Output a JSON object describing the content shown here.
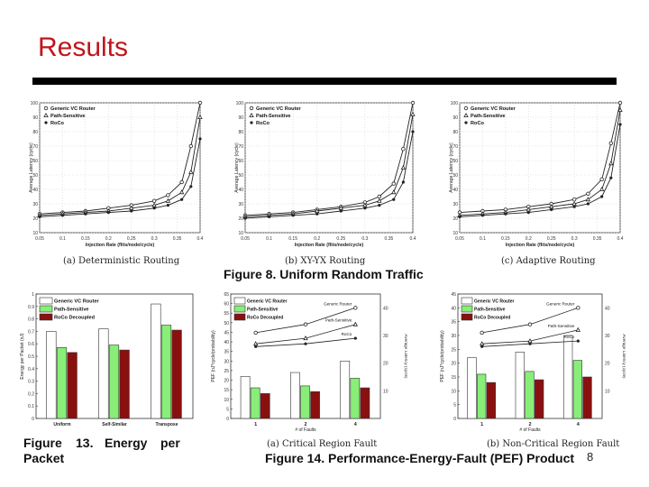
{
  "slide": {
    "title": "Results",
    "page_number": "8"
  },
  "captions": {
    "fig8": "Figure 8. Uniform Random Traffic",
    "fig13_line1": [
      "Figure",
      "13.",
      "Energy",
      "per"
    ],
    "fig13_line2": "Packet",
    "fig14": "Figure 14. Performance-Energy-Fault (PEF) Product"
  },
  "colors": {
    "title": "#c0151b",
    "bar_generic": "#ffffff",
    "bar_path": "#88ee77",
    "bar_roco": "#8a1010"
  },
  "chart_data": [
    {
      "id": "latency-a",
      "type": "line",
      "caption": "(a) Deterministic Routing",
      "xlabel": "Injection Rate (flits/node/cycle)",
      "ylabel": "Average Latency (cycle)",
      "xlim": [
        0.05,
        0.4
      ],
      "ylim": [
        10,
        100
      ],
      "xticks": [
        "0.05",
        "0.1",
        "0.15",
        "0.2",
        "0.25",
        "0.3",
        "0.35",
        "0.4"
      ],
      "yticks": [
        "100",
        "90",
        "80",
        "70",
        "60",
        "50",
        "40",
        "30",
        "20",
        "10"
      ],
      "x": [
        0.05,
        0.1,
        0.15,
        0.2,
        0.25,
        0.3,
        0.33,
        0.36,
        0.38,
        0.4
      ],
      "series": [
        {
          "name": "Generic VC Router",
          "marker": "o",
          "values": [
            23,
            24,
            25,
            27,
            29,
            32,
            36,
            45,
            70,
            100
          ]
        },
        {
          "name": "Path-Sensitive",
          "marker": "triangle",
          "values": [
            22,
            23,
            24,
            25,
            27,
            29,
            32,
            38,
            52,
            90
          ]
        },
        {
          "name": "RoCo",
          "marker": "star",
          "values": [
            21,
            22,
            23,
            24,
            25,
            27,
            29,
            33,
            42,
            75
          ]
        }
      ]
    },
    {
      "id": "latency-b",
      "type": "line",
      "caption": "(b) XY-YX Routing",
      "xlabel": "Injection Rate (flits/node/cycle)",
      "ylabel": "Average Latency (cycle)",
      "xlim": [
        0.05,
        0.4
      ],
      "ylim": [
        10,
        100
      ],
      "xticks": [
        "0.05",
        "0.1",
        "0.15",
        "0.2",
        "0.25",
        "0.3",
        "0.35",
        "0.4"
      ],
      "yticks": [
        "100",
        "90",
        "80",
        "70",
        "60",
        "50",
        "40",
        "30",
        "20",
        "10"
      ],
      "x": [
        0.05,
        0.1,
        0.15,
        0.2,
        0.25,
        0.3,
        0.33,
        0.36,
        0.38,
        0.4
      ],
      "series": [
        {
          "name": "Generic VC Router",
          "marker": "o",
          "values": [
            22,
            23,
            24,
            26,
            28,
            31,
            35,
            44,
            68,
            100
          ]
        },
        {
          "name": "Path-Sensitive",
          "marker": "triangle",
          "values": [
            21,
            22,
            23,
            25,
            27,
            29,
            32,
            38,
            55,
            92
          ]
        },
        {
          "name": "RoCo",
          "marker": "star",
          "values": [
            20,
            21,
            22,
            23,
            25,
            27,
            29,
            33,
            45,
            80
          ]
        }
      ]
    },
    {
      "id": "latency-c",
      "type": "line",
      "caption": "(c) Adaptive Routing",
      "xlabel": "Injection Rate (flits/node/cycle)",
      "ylabel": "Average Latency (cycle)",
      "xlim": [
        0.05,
        0.4
      ],
      "ylim": [
        10,
        100
      ],
      "xticks": [
        "0.05",
        "0.1",
        "0.15",
        "0.2",
        "0.25",
        "0.3",
        "0.35",
        "0.4"
      ],
      "yticks": [
        "100",
        "90",
        "80",
        "70",
        "60",
        "50",
        "40",
        "30",
        "20",
        "10"
      ],
      "x": [
        0.05,
        0.1,
        0.15,
        0.2,
        0.25,
        0.3,
        0.33,
        0.36,
        0.38,
        0.4
      ],
      "series": [
        {
          "name": "Generic VC Router",
          "marker": "o",
          "values": [
            24,
            25,
            26,
            28,
            30,
            33,
            37,
            47,
            72,
            100
          ]
        },
        {
          "name": "Path-Sensitive",
          "marker": "triangle",
          "values": [
            22,
            23,
            24,
            26,
            28,
            30,
            33,
            40,
            58,
            95
          ]
        },
        {
          "name": "RoCo",
          "marker": "star",
          "values": [
            21,
            22,
            23,
            24,
            26,
            28,
            30,
            35,
            48,
            85
          ]
        }
      ]
    },
    {
      "id": "energy",
      "type": "bar",
      "ylabel": "Energy per Packet (nJ)",
      "ylim": [
        0,
        1
      ],
      "yticks": [
        "1",
        "0.9",
        "0.8",
        "0.7",
        "0.6",
        "0.5",
        "0.4",
        "0.3",
        "0.2",
        "0.1",
        "0"
      ],
      "categories": [
        "Uniform",
        "Self-Similar",
        "Transpose"
      ],
      "series": [
        {
          "name": "Generic VC Router",
          "values": [
            0.7,
            0.72,
            0.92
          ]
        },
        {
          "name": "Path-Sensitive",
          "values": [
            0.57,
            0.59,
            0.75
          ]
        },
        {
          "name": "RoCo Decoupled",
          "values": [
            0.53,
            0.55,
            0.71
          ]
        }
      ]
    },
    {
      "id": "pef-a",
      "type": "bar",
      "caption": "(a) Critical Region Fault",
      "xlabel": "# of Faults",
      "ylabel": "PEF (nJ*cycle/probability)",
      "ylabel_right": "Average Latency (cycle)",
      "ylim": [
        0,
        65
      ],
      "yticks": [
        "65",
        "60",
        "55",
        "50",
        "45",
        "40",
        "35",
        "30",
        "25",
        "20",
        "15",
        "10",
        "5",
        "0"
      ],
      "yticks_right": [
        "40",
        "30",
        "20",
        "10"
      ],
      "categories": [
        "1",
        "2",
        "4"
      ],
      "series": [
        {
          "name": "Generic VC Router",
          "values": [
            22,
            24,
            30
          ]
        },
        {
          "name": "Path-Sensitive",
          "values": [
            16,
            17,
            21
          ]
        },
        {
          "name": "RoCo Decoupled",
          "values": [
            13,
            14,
            16
          ]
        }
      ],
      "line_series": [
        {
          "name": "Generic Router",
          "values": [
            31,
            34,
            40
          ]
        },
        {
          "name": "Path-Sensitive",
          "values": [
            27,
            29,
            34
          ]
        },
        {
          "name": "RoCo",
          "values": [
            26,
            27,
            29
          ]
        }
      ]
    },
    {
      "id": "pef-b",
      "type": "bar",
      "caption": "(b) Non-Critical Region Fault",
      "xlabel": "# of Faults",
      "ylabel": "PEF (nJ*cycle/probability)",
      "ylabel_right": "Average Latency (cycle)",
      "ylim": [
        0,
        45
      ],
      "yticks": [
        "45",
        "40",
        "35",
        "30",
        "25",
        "20",
        "15",
        "10",
        "5",
        "0"
      ],
      "yticks_right": [
        "40",
        "30",
        "20",
        "10"
      ],
      "categories": [
        "1",
        "2",
        "4"
      ],
      "series": [
        {
          "name": "Generic VC Router",
          "values": [
            22,
            24,
            30
          ]
        },
        {
          "name": "Path-Sensitive",
          "values": [
            16,
            17,
            21
          ]
        },
        {
          "name": "RoCo Decoupled",
          "values": [
            13,
            14,
            15
          ]
        }
      ],
      "line_series": [
        {
          "name": "Generic Router",
          "values": [
            31,
            34,
            40
          ]
        },
        {
          "name": "Path-Sensitive",
          "values": [
            27,
            28,
            32
          ]
        },
        {
          "name": "RoCo",
          "values": [
            26,
            27,
            28
          ]
        }
      ]
    }
  ]
}
